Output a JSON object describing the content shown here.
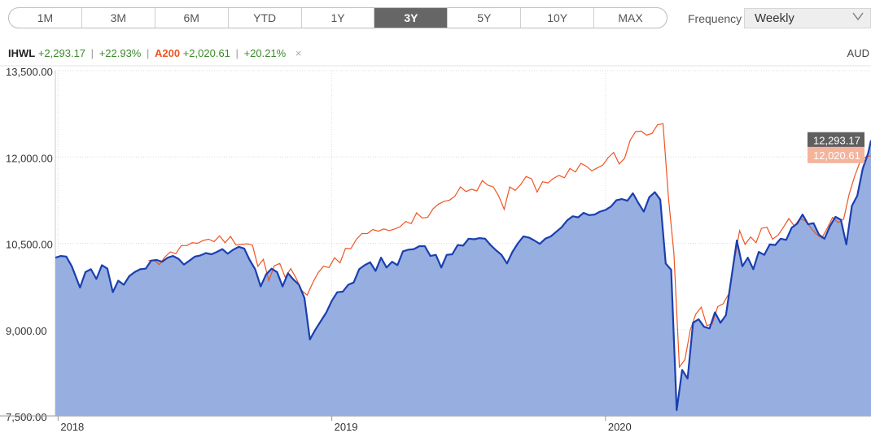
{
  "range": {
    "options": [
      "1M",
      "3M",
      "6M",
      "YTD",
      "1Y",
      "3Y",
      "5Y",
      "10Y",
      "MAX"
    ],
    "selected": "3Y"
  },
  "frequency": {
    "label": "Frequency",
    "value": "Weekly"
  },
  "legend": {
    "symbol1": "IHWL",
    "change1": "+2,293.17",
    "pct1": "+22.93%",
    "symbol2": "A200",
    "change2": "+2,020.61",
    "pct2": "+20.21%",
    "sep": "|",
    "close": "×"
  },
  "currency": "AUD",
  "colors": {
    "ihwl_line": "#1a3fb0",
    "ihwl_fill": "#97aee0",
    "a200_line": "#ee5522",
    "label_ihwl": "#5f5f5f",
    "label_a200": "#f4b49c",
    "active_range": "#666666"
  },
  "chart_data": {
    "type": "area",
    "ylim": [
      7500,
      13500
    ],
    "yticks": [
      7500,
      9000,
      10500,
      12000,
      13500
    ],
    "ytick_labels": [
      "7,500.00",
      "9,000.00",
      "10,500.00",
      "12,000.00",
      "13,500.00"
    ],
    "xticks": [
      2018,
      2019,
      2020
    ],
    "xtick_labels": [
      "2018",
      "2019",
      "2020"
    ],
    "x_range": [
      2017.99,
      2020.97
    ],
    "grid": true,
    "series": [
      {
        "name": "IHWL",
        "last_label": "12,293.17",
        "points": [
          [
            2017.99,
            10250
          ],
          [
            2018.01,
            10280
          ],
          [
            2018.03,
            10270
          ],
          [
            2018.05,
            10100
          ],
          [
            2018.08,
            9730
          ],
          [
            2018.1,
            10000
          ],
          [
            2018.12,
            10050
          ],
          [
            2018.14,
            9880
          ],
          [
            2018.16,
            10120
          ],
          [
            2018.18,
            10060
          ],
          [
            2018.2,
            9650
          ],
          [
            2018.22,
            9850
          ],
          [
            2018.24,
            9780
          ],
          [
            2018.26,
            9930
          ],
          [
            2018.28,
            10000
          ],
          [
            2018.3,
            10050
          ],
          [
            2018.32,
            10060
          ],
          [
            2018.34,
            10200
          ],
          [
            2018.36,
            10210
          ],
          [
            2018.38,
            10180
          ],
          [
            2018.4,
            10250
          ],
          [
            2018.42,
            10280
          ],
          [
            2018.44,
            10230
          ],
          [
            2018.46,
            10130
          ],
          [
            2018.48,
            10200
          ],
          [
            2018.5,
            10270
          ],
          [
            2018.52,
            10290
          ],
          [
            2018.54,
            10330
          ],
          [
            2018.56,
            10310
          ],
          [
            2018.58,
            10350
          ],
          [
            2018.6,
            10400
          ],
          [
            2018.62,
            10320
          ],
          [
            2018.64,
            10390
          ],
          [
            2018.66,
            10440
          ],
          [
            2018.68,
            10410
          ],
          [
            2018.7,
            10210
          ],
          [
            2018.72,
            10050
          ],
          [
            2018.74,
            9750
          ],
          [
            2018.76,
            9960
          ],
          [
            2018.78,
            10060
          ],
          [
            2018.8,
            10000
          ],
          [
            2018.82,
            9750
          ],
          [
            2018.84,
            9980
          ],
          [
            2018.86,
            9870
          ],
          [
            2018.88,
            9780
          ],
          [
            2018.9,
            9550
          ],
          [
            2018.92,
            8830
          ],
          [
            2018.94,
            9000
          ],
          [
            2018.96,
            9150
          ],
          [
            2018.98,
            9300
          ],
          [
            2019.0,
            9500
          ],
          [
            2019.02,
            9650
          ],
          [
            2019.04,
            9660
          ],
          [
            2019.06,
            9780
          ],
          [
            2019.08,
            9820
          ],
          [
            2019.1,
            10050
          ],
          [
            2019.12,
            10120
          ],
          [
            2019.14,
            10170
          ],
          [
            2019.16,
            10020
          ],
          [
            2019.18,
            10250
          ],
          [
            2019.2,
            10080
          ],
          [
            2019.22,
            10180
          ],
          [
            2019.24,
            10120
          ],
          [
            2019.26,
            10360
          ],
          [
            2019.28,
            10390
          ],
          [
            2019.3,
            10400
          ],
          [
            2019.32,
            10450
          ],
          [
            2019.34,
            10450
          ],
          [
            2019.36,
            10280
          ],
          [
            2019.38,
            10300
          ],
          [
            2019.4,
            10080
          ],
          [
            2019.42,
            10300
          ],
          [
            2019.44,
            10310
          ],
          [
            2019.46,
            10470
          ],
          [
            2019.48,
            10460
          ],
          [
            2019.5,
            10580
          ],
          [
            2019.52,
            10570
          ],
          [
            2019.54,
            10590
          ],
          [
            2019.56,
            10580
          ],
          [
            2019.58,
            10470
          ],
          [
            2019.6,
            10380
          ],
          [
            2019.62,
            10300
          ],
          [
            2019.64,
            10150
          ],
          [
            2019.66,
            10350
          ],
          [
            2019.68,
            10500
          ],
          [
            2019.7,
            10620
          ],
          [
            2019.72,
            10600
          ],
          [
            2019.74,
            10550
          ],
          [
            2019.76,
            10490
          ],
          [
            2019.78,
            10580
          ],
          [
            2019.8,
            10620
          ],
          [
            2019.82,
            10700
          ],
          [
            2019.84,
            10780
          ],
          [
            2019.86,
            10900
          ],
          [
            2019.88,
            10970
          ],
          [
            2019.9,
            10950
          ],
          [
            2019.92,
            11030
          ],
          [
            2019.94,
            10990
          ],
          [
            2019.96,
            11000
          ],
          [
            2019.98,
            11050
          ],
          [
            2020.0,
            11080
          ],
          [
            2020.02,
            11140
          ],
          [
            2020.04,
            11250
          ],
          [
            2020.06,
            11270
          ],
          [
            2020.08,
            11240
          ],
          [
            2020.1,
            11370
          ],
          [
            2020.12,
            11200
          ],
          [
            2020.14,
            11050
          ],
          [
            2020.16,
            11300
          ],
          [
            2020.18,
            11390
          ],
          [
            2020.2,
            11260
          ],
          [
            2020.22,
            10150
          ],
          [
            2020.24,
            10040
          ],
          [
            2020.26,
            7600
          ],
          [
            2020.28,
            8300
          ],
          [
            2020.3,
            8150
          ],
          [
            2020.32,
            9120
          ],
          [
            2020.34,
            9180
          ],
          [
            2020.36,
            9050
          ],
          [
            2020.38,
            9020
          ],
          [
            2020.4,
            9300
          ],
          [
            2020.42,
            9120
          ],
          [
            2020.44,
            9250
          ],
          [
            2020.46,
            9900
          ],
          [
            2020.48,
            10550
          ],
          [
            2020.5,
            10100
          ],
          [
            2020.52,
            10250
          ],
          [
            2020.54,
            10050
          ],
          [
            2020.56,
            10350
          ],
          [
            2020.58,
            10300
          ],
          [
            2020.6,
            10480
          ],
          [
            2020.62,
            10470
          ],
          [
            2020.64,
            10580
          ],
          [
            2020.66,
            10560
          ],
          [
            2020.68,
            10770
          ],
          [
            2020.7,
            10840
          ],
          [
            2020.72,
            11000
          ],
          [
            2020.74,
            10830
          ],
          [
            2020.76,
            10850
          ],
          [
            2020.78,
            10650
          ],
          [
            2020.8,
            10580
          ],
          [
            2020.82,
            10800
          ],
          [
            2020.84,
            10960
          ],
          [
            2020.86,
            10910
          ],
          [
            2020.88,
            10480
          ],
          [
            2020.9,
            11150
          ],
          [
            2020.92,
            11330
          ],
          [
            2020.94,
            11800
          ],
          [
            2020.96,
            12070
          ],
          [
            2020.97,
            12290
          ]
        ]
      },
      {
        "name": "A200",
        "last_label": "12,020.61",
        "points": [
          [
            2018.33,
            10200
          ],
          [
            2018.35,
            10210
          ],
          [
            2018.37,
            10130
          ],
          [
            2018.39,
            10260
          ],
          [
            2018.41,
            10350
          ],
          [
            2018.43,
            10320
          ],
          [
            2018.45,
            10460
          ],
          [
            2018.47,
            10460
          ],
          [
            2018.49,
            10510
          ],
          [
            2018.51,
            10500
          ],
          [
            2018.53,
            10550
          ],
          [
            2018.55,
            10570
          ],
          [
            2018.57,
            10530
          ],
          [
            2018.59,
            10630
          ],
          [
            2018.61,
            10510
          ],
          [
            2018.63,
            10620
          ],
          [
            2018.65,
            10470
          ],
          [
            2018.67,
            10480
          ],
          [
            2018.69,
            10490
          ],
          [
            2018.71,
            10470
          ],
          [
            2018.73,
            10100
          ],
          [
            2018.75,
            10220
          ],
          [
            2018.77,
            9850
          ],
          [
            2018.79,
            10110
          ],
          [
            2018.81,
            10150
          ],
          [
            2018.83,
            9910
          ],
          [
            2018.85,
            10060
          ],
          [
            2018.87,
            9890
          ],
          [
            2018.89,
            9680
          ],
          [
            2018.91,
            9600
          ],
          [
            2018.93,
            9810
          ],
          [
            2018.95,
            9990
          ],
          [
            2018.97,
            10100
          ],
          [
            2018.99,
            10080
          ],
          [
            2019.01,
            10250
          ],
          [
            2019.03,
            10160
          ],
          [
            2019.05,
            10410
          ],
          [
            2019.07,
            10410
          ],
          [
            2019.09,
            10570
          ],
          [
            2019.11,
            10670
          ],
          [
            2019.13,
            10670
          ],
          [
            2019.15,
            10740
          ],
          [
            2019.17,
            10710
          ],
          [
            2019.19,
            10750
          ],
          [
            2019.21,
            10720
          ],
          [
            2019.23,
            10750
          ],
          [
            2019.25,
            10790
          ],
          [
            2019.27,
            10880
          ],
          [
            2019.29,
            10840
          ],
          [
            2019.31,
            11030
          ],
          [
            2019.33,
            10940
          ],
          [
            2019.35,
            10950
          ],
          [
            2019.37,
            11100
          ],
          [
            2019.39,
            11180
          ],
          [
            2019.41,
            11230
          ],
          [
            2019.43,
            11250
          ],
          [
            2019.45,
            11320
          ],
          [
            2019.47,
            11480
          ],
          [
            2019.49,
            11400
          ],
          [
            2019.51,
            11440
          ],
          [
            2019.53,
            11410
          ],
          [
            2019.55,
            11590
          ],
          [
            2019.57,
            11510
          ],
          [
            2019.59,
            11480
          ],
          [
            2019.61,
            11320
          ],
          [
            2019.63,
            11090
          ],
          [
            2019.65,
            11480
          ],
          [
            2019.67,
            11420
          ],
          [
            2019.69,
            11520
          ],
          [
            2019.71,
            11660
          ],
          [
            2019.73,
            11620
          ],
          [
            2019.75,
            11390
          ],
          [
            2019.77,
            11570
          ],
          [
            2019.79,
            11550
          ],
          [
            2019.81,
            11630
          ],
          [
            2019.83,
            11680
          ],
          [
            2019.85,
            11640
          ],
          [
            2019.87,
            11800
          ],
          [
            2019.89,
            11740
          ],
          [
            2019.91,
            11890
          ],
          [
            2019.93,
            11840
          ],
          [
            2019.95,
            11760
          ],
          [
            2019.97,
            11810
          ],
          [
            2019.99,
            11860
          ],
          [
            2020.01,
            11990
          ],
          [
            2020.03,
            12080
          ],
          [
            2020.05,
            11880
          ],
          [
            2020.07,
            11980
          ],
          [
            2020.09,
            12290
          ],
          [
            2020.11,
            12440
          ],
          [
            2020.13,
            12450
          ],
          [
            2020.15,
            12380
          ],
          [
            2020.17,
            12410
          ],
          [
            2020.19,
            12560
          ],
          [
            2020.21,
            12580
          ],
          [
            2020.23,
            11290
          ],
          [
            2020.25,
            10320
          ],
          [
            2020.27,
            8350
          ],
          [
            2020.29,
            8480
          ],
          [
            2020.31,
            9000
          ],
          [
            2020.33,
            9270
          ],
          [
            2020.35,
            9390
          ],
          [
            2020.37,
            9070
          ],
          [
            2020.39,
            9100
          ],
          [
            2020.41,
            9400
          ],
          [
            2020.43,
            9450
          ],
          [
            2020.45,
            9620
          ],
          [
            2020.47,
            10180
          ],
          [
            2020.49,
            10720
          ],
          [
            2020.51,
            10480
          ],
          [
            2020.53,
            10610
          ],
          [
            2020.55,
            10510
          ],
          [
            2020.57,
            10760
          ],
          [
            2020.59,
            10780
          ],
          [
            2020.61,
            10570
          ],
          [
            2020.63,
            10640
          ],
          [
            2020.65,
            10780
          ],
          [
            2020.67,
            10930
          ],
          [
            2020.69,
            10800
          ],
          [
            2020.71,
            10930
          ],
          [
            2020.73,
            10890
          ],
          [
            2020.75,
            10770
          ],
          [
            2020.77,
            10660
          ],
          [
            2020.79,
            10590
          ],
          [
            2020.81,
            10760
          ],
          [
            2020.83,
            10950
          ],
          [
            2020.85,
            10860
          ],
          [
            2020.87,
            10920
          ],
          [
            2020.89,
            11350
          ],
          [
            2020.91,
            11660
          ],
          [
            2020.93,
            11920
          ],
          [
            2020.95,
            12000
          ],
          [
            2020.97,
            12020
          ]
        ]
      }
    ]
  }
}
